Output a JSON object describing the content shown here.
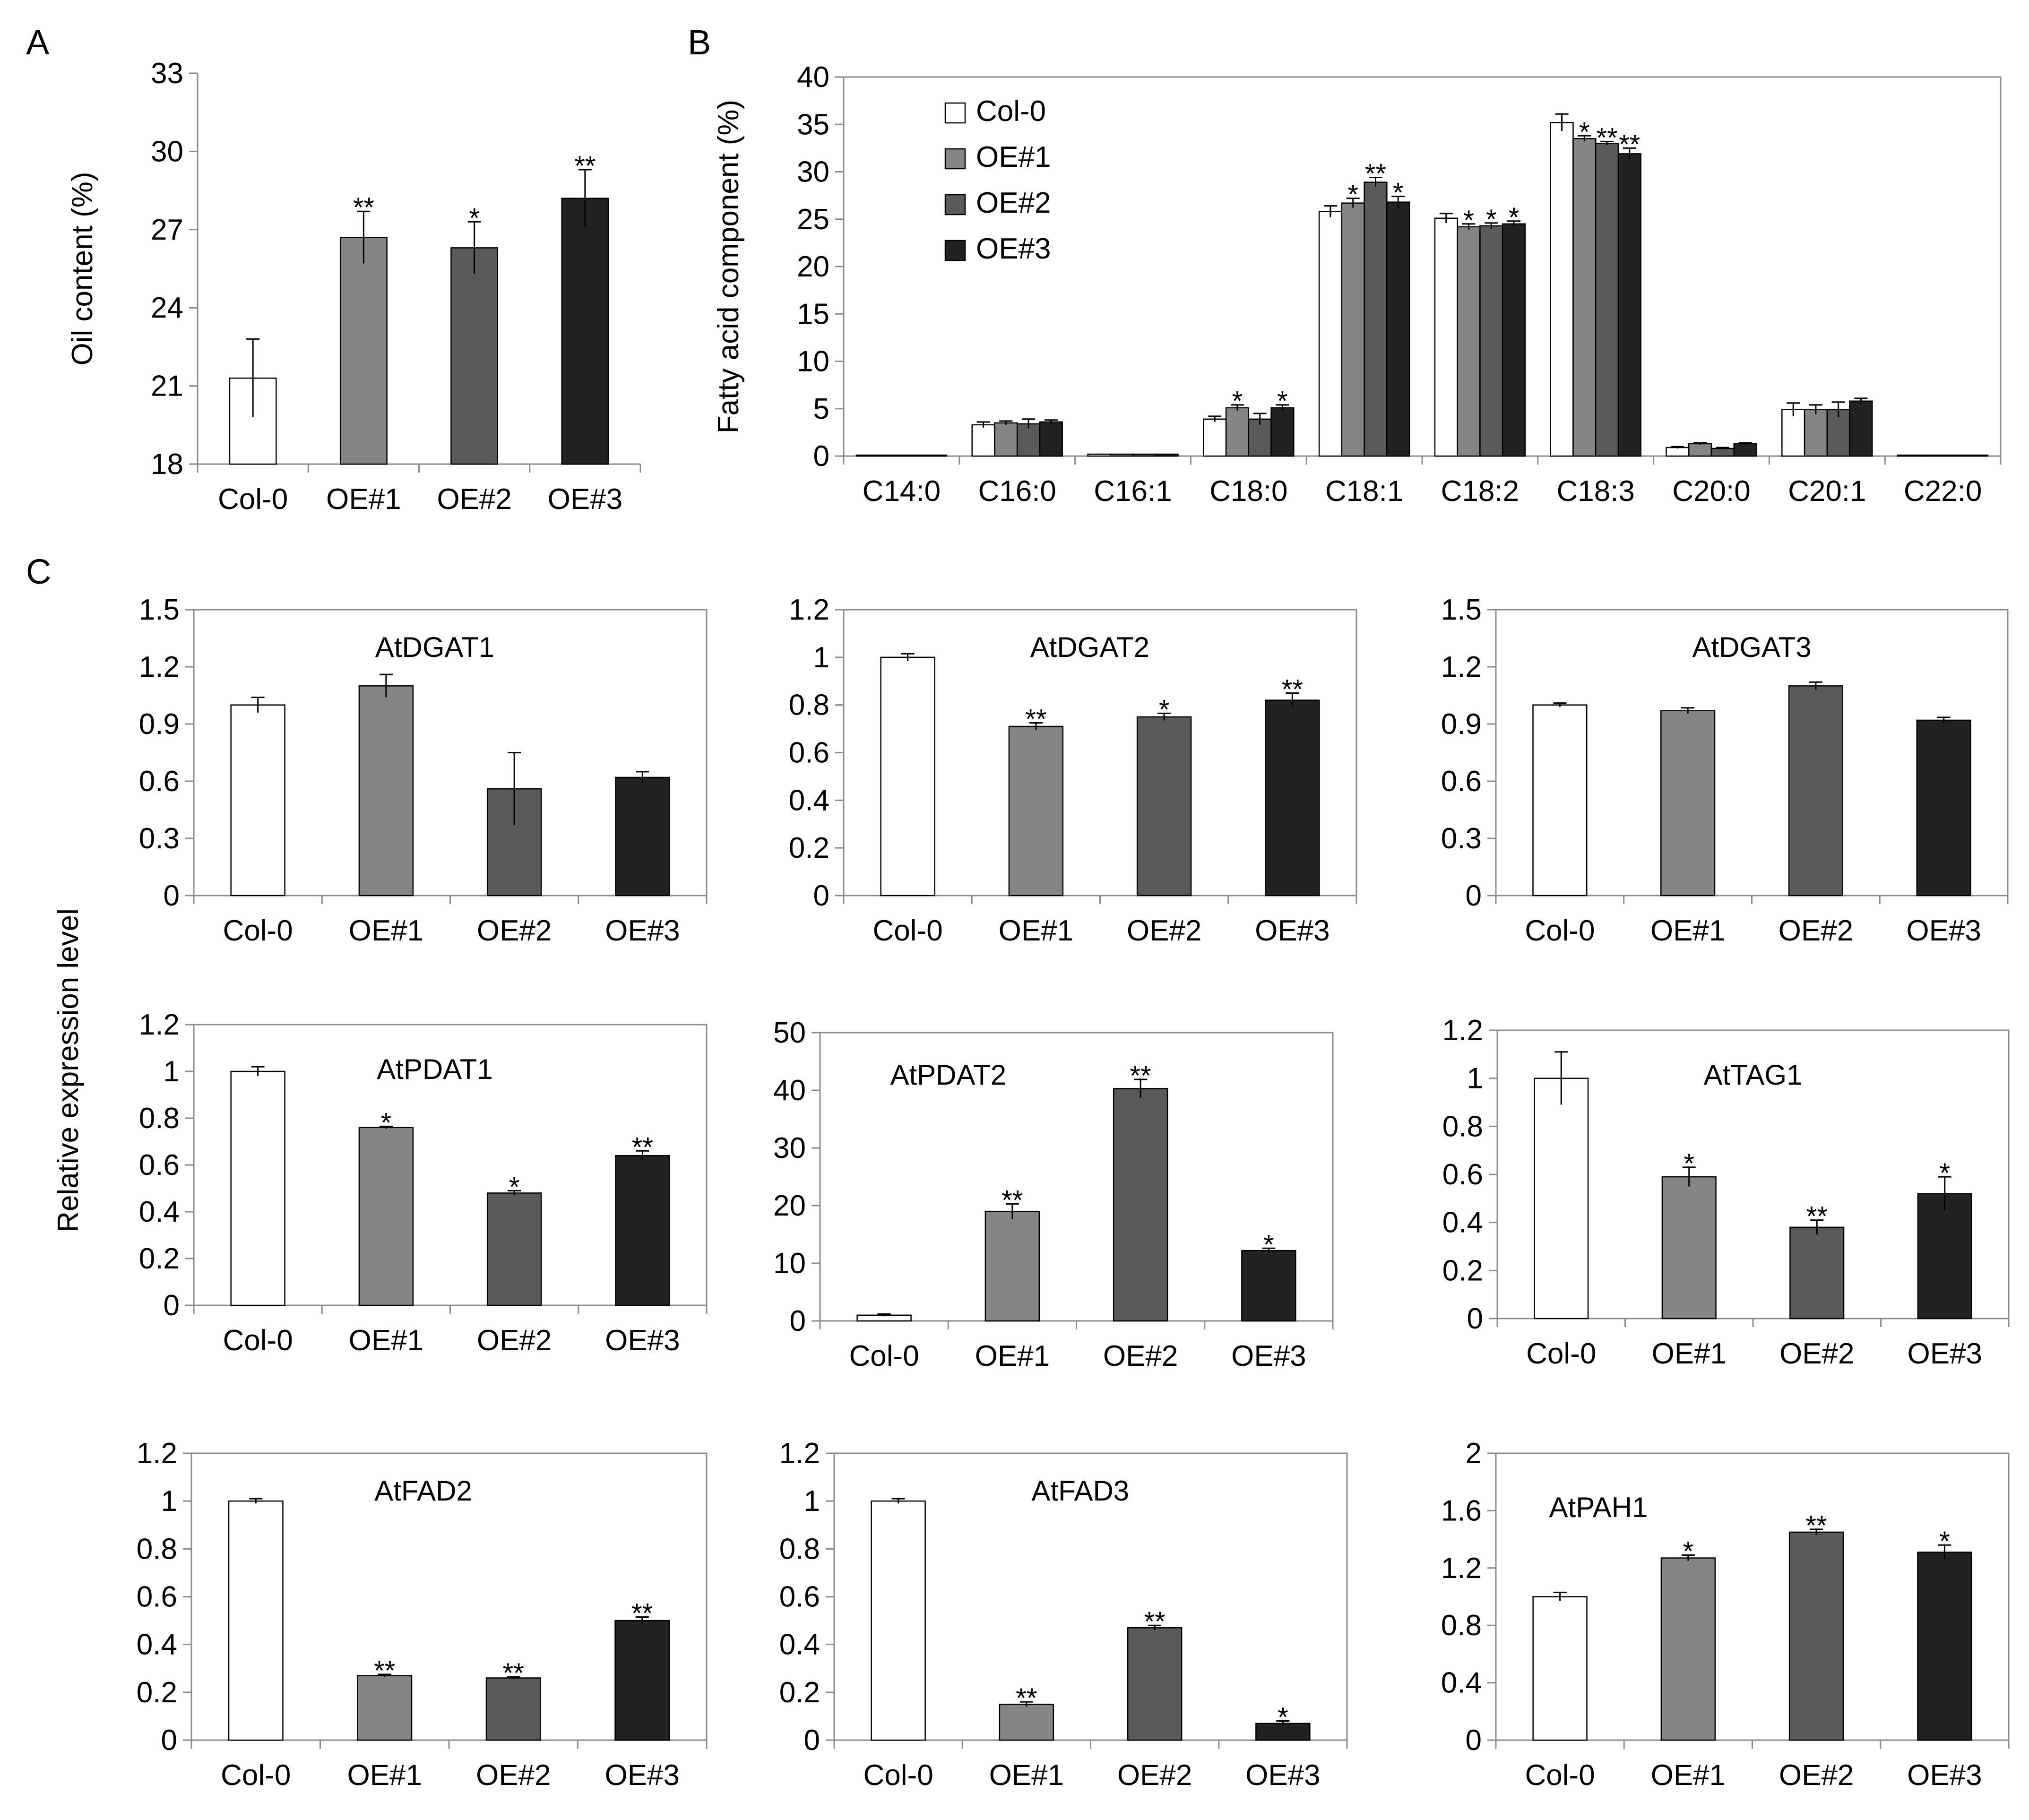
{
  "colors": {
    "Col-0": "#ffffff",
    "OE#1": "#858585",
    "OE#2": "#5a5a5a",
    "OE#3": "#222222",
    "axis": "#8c8c8c",
    "frame": "#8c8c8c",
    "bar_stroke": "#000000"
  },
  "panel_labels": {
    "A": "A",
    "B": "B",
    "C": "C"
  },
  "shared_ylabel": "Relative expression level",
  "chart_data": [
    {
      "id": "A",
      "type": "bar",
      "title": "",
      "ylabel": "Oil content (%)",
      "xlabel": "",
      "categories": [
        "Col-0",
        "OE#1",
        "OE#2",
        "OE#3"
      ],
      "values": [
        21.3,
        26.7,
        26.3,
        28.2
      ],
      "errors": [
        1.5,
        1.0,
        1.0,
        1.1
      ],
      "significance": [
        "",
        "**",
        "*",
        "**"
      ],
      "ylim": [
        18,
        33
      ],
      "yticks": [
        "18",
        "21",
        "24",
        "27",
        "30",
        "33"
      ],
      "framed": false
    },
    {
      "id": "B",
      "type": "bar",
      "title": "",
      "ylabel": "Fatty acid  component (%)",
      "xlabel": "",
      "categories": [
        "C14:0",
        "C16:0",
        "C16:1",
        "C18:0",
        "C18:1",
        "C18:2",
        "C18:3",
        "C20:0",
        "C20:1",
        "C22:0"
      ],
      "series": [
        {
          "name": "Col-0",
          "values": [
            0.1,
            3.3,
            0.2,
            3.9,
            25.8,
            25.1,
            35.2,
            0.9,
            4.9,
            0.1
          ],
          "errors": [
            0,
            0.3,
            0,
            0.3,
            0.6,
            0.5,
            0.9,
            0.1,
            0.7,
            0
          ],
          "significance": [
            "",
            "",
            "",
            "",
            "",
            "",
            "",
            "",
            "",
            ""
          ]
        },
        {
          "name": "OE#1",
          "values": [
            0.1,
            3.5,
            0.2,
            5.1,
            26.7,
            24.2,
            33.5,
            1.3,
            4.9,
            0.1
          ],
          "errors": [
            0,
            0.2,
            0,
            0.3,
            0.5,
            0.3,
            0.3,
            0.1,
            0.5,
            0
          ],
          "significance": [
            "",
            "",
            "",
            "*",
            "*",
            "*",
            "*",
            "",
            "",
            ""
          ]
        },
        {
          "name": "OE#2",
          "values": [
            0.1,
            3.4,
            0.2,
            3.9,
            28.9,
            24.3,
            33.0,
            0.8,
            4.9,
            0.1
          ],
          "errors": [
            0,
            0.5,
            0,
            0.6,
            0.5,
            0.3,
            0.2,
            0.1,
            0.8,
            0
          ],
          "significance": [
            "",
            "",
            "",
            "",
            "**",
            "*",
            "**",
            "",
            "",
            ""
          ]
        },
        {
          "name": "OE#3",
          "values": [
            0.1,
            3.6,
            0.2,
            5.1,
            26.8,
            24.5,
            31.9,
            1.3,
            5.8,
            0.1
          ],
          "errors": [
            0,
            0.2,
            0,
            0.3,
            0.6,
            0.3,
            0.6,
            0.1,
            0.3,
            0
          ],
          "significance": [
            "",
            "",
            "",
            "*",
            "*",
            "*",
            "**",
            "",
            "",
            ""
          ]
        }
      ],
      "ylim": [
        0,
        40
      ],
      "yticks": [
        "0",
        "5",
        "10",
        "15",
        "20",
        "25",
        "30",
        "35",
        "40"
      ],
      "legend": [
        "Col-0",
        "OE#1",
        "OE#2",
        "OE#3"
      ],
      "legend_position": "top-left",
      "framed": true
    },
    {
      "id": "C-AtDGAT1",
      "type": "bar",
      "title": "AtDGAT1",
      "categories": [
        "Col-0",
        "OE#1",
        "OE#2",
        "OE#3"
      ],
      "values": [
        1.0,
        1.1,
        0.56,
        0.62
      ],
      "errors": [
        0.04,
        0.06,
        0.19,
        0.03
      ],
      "significance": [
        "",
        "",
        "",
        ""
      ],
      "ylim": [
        0,
        1.5
      ],
      "yticks": [
        "0",
        "0.3",
        "0.6",
        "0.9",
        "1.2",
        "1.5"
      ],
      "framed": true
    },
    {
      "id": "C-AtDGAT2",
      "type": "bar",
      "title": "AtDGAT2",
      "categories": [
        "Col-0",
        "OE#1",
        "OE#2",
        "OE#3"
      ],
      "values": [
        1.0,
        0.71,
        0.75,
        0.82
      ],
      "errors": [
        0.015,
        0.015,
        0.015,
        0.03
      ],
      "significance": [
        "",
        "**",
        "*",
        "**"
      ],
      "ylim": [
        0,
        1.2
      ],
      "yticks": [
        "0",
        "0.2",
        "0.4",
        "0.6",
        "0.8",
        "1",
        "1.2"
      ],
      "framed": true
    },
    {
      "id": "C-AtDGAT3",
      "type": "bar",
      "title": "AtDGAT3",
      "categories": [
        "Col-0",
        "OE#1",
        "OE#2",
        "OE#3"
      ],
      "values": [
        1.0,
        0.97,
        1.1,
        0.92
      ],
      "errors": [
        0.01,
        0.015,
        0.02,
        0.015
      ],
      "significance": [
        "",
        "",
        "",
        ""
      ],
      "ylim": [
        0,
        1.5
      ],
      "yticks": [
        "0",
        "0.3",
        "0.6",
        "0.9",
        "1.2",
        "1.5"
      ],
      "framed": true
    },
    {
      "id": "C-AtPDAT1",
      "type": "bar",
      "title": "AtPDAT1",
      "categories": [
        "Col-0",
        "OE#1",
        "OE#2",
        "OE#3"
      ],
      "values": [
        1.0,
        0.76,
        0.48,
        0.64
      ],
      "errors": [
        0.02,
        0.005,
        0.01,
        0.02
      ],
      "significance": [
        "",
        "*",
        "*",
        "**"
      ],
      "ylim": [
        0,
        1.2
      ],
      "yticks": [
        "0",
        "0.2",
        "0.4",
        "0.6",
        "0.8",
        "1",
        "1.2"
      ],
      "framed": true
    },
    {
      "id": "C-AtPDAT2",
      "type": "bar",
      "title": "AtPDAT2",
      "categories": [
        "Col-0",
        "OE#1",
        "OE#2",
        "OE#3"
      ],
      "values": [
        1.0,
        19.0,
        40.3,
        12.2
      ],
      "errors": [
        0.2,
        1.3,
        1.6,
        0.4
      ],
      "significance": [
        "",
        "**",
        "**",
        "*"
      ],
      "ylim": [
        0,
        50
      ],
      "yticks": [
        "0",
        "10",
        "20",
        "30",
        "40",
        "50"
      ],
      "framed": true
    },
    {
      "id": "C-AtTAG1",
      "type": "bar",
      "title": "AtTAG1",
      "categories": [
        "Col-0",
        "OE#1",
        "OE#2",
        "OE#3"
      ],
      "values": [
        1.0,
        0.59,
        0.38,
        0.52
      ],
      "errors": [
        0.11,
        0.04,
        0.03,
        0.07
      ],
      "significance": [
        "",
        "*",
        "**",
        "*"
      ],
      "ylim": [
        0,
        1.2
      ],
      "yticks": [
        "0",
        "0.2",
        "0.4",
        "0.6",
        "0.8",
        "1",
        "1.2"
      ],
      "framed": true
    },
    {
      "id": "C-AtFAD2",
      "type": "bar",
      "title": "AtFAD2",
      "categories": [
        "Col-0",
        "OE#1",
        "OE#2",
        "OE#3"
      ],
      "values": [
        1.0,
        0.27,
        0.26,
        0.5
      ],
      "errors": [
        0.01,
        0.005,
        0.005,
        0.015
      ],
      "significance": [
        "",
        "**",
        "**",
        "**"
      ],
      "ylim": [
        0,
        1.2
      ],
      "yticks": [
        "0",
        "0.2",
        "0.4",
        "0.6",
        "0.8",
        "1",
        "1.2"
      ],
      "framed": true
    },
    {
      "id": "C-AtFAD3",
      "type": "bar",
      "title": "AtFAD3",
      "categories": [
        "Col-0",
        "OE#1",
        "OE#2",
        "OE#3"
      ],
      "values": [
        1.0,
        0.15,
        0.47,
        0.07
      ],
      "errors": [
        0.01,
        0.01,
        0.01,
        0.01
      ],
      "significance": [
        "",
        "**",
        "**",
        "*"
      ],
      "ylim": [
        0,
        1.2
      ],
      "yticks": [
        "0",
        "0.2",
        "0.4",
        "0.6",
        "0.8",
        "1",
        "1.2"
      ],
      "framed": true
    },
    {
      "id": "C-AtPAH1",
      "type": "bar",
      "title": "AtPAH1",
      "categories": [
        "Col-0",
        "OE#1",
        "OE#2",
        "OE#3"
      ],
      "values": [
        1.0,
        1.27,
        1.45,
        1.31
      ],
      "errors": [
        0.03,
        0.02,
        0.02,
        0.05
      ],
      "significance": [
        "",
        "*",
        "**",
        "*"
      ],
      "ylim": [
        0,
        2
      ],
      "yticks": [
        "0",
        "0.4",
        "0.8",
        "1.2",
        "1.6",
        "2"
      ],
      "framed": true
    }
  ]
}
